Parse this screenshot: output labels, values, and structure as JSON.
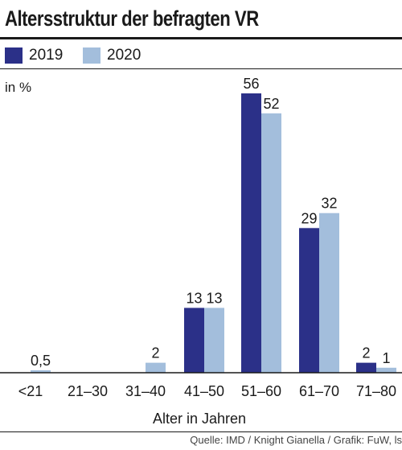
{
  "title": "Altersstruktur der befragten VR",
  "unit_label": "in %",
  "source": "Quelle: IMD / Knight Gianella / Grafik: FuW, ls",
  "colors": {
    "2019": "#2b3088",
    "2020": "#a3bedc",
    "axis": "#1a1a1a"
  },
  "chart_data": {
    "type": "bar",
    "title": "Altersstruktur der befragten VR",
    "xlabel": "Alter in Jahren",
    "ylabel": "in %",
    "categories": [
      "<21",
      "21–30",
      "31–40",
      "41–50",
      "51–60",
      "61–70",
      "71–80"
    ],
    "series": [
      {
        "name": "2019",
        "values": [
          null,
          null,
          null,
          13,
          56,
          29,
          2
        ],
        "labels": [
          "",
          "",
          "",
          "13",
          "56",
          "29",
          "2"
        ]
      },
      {
        "name": "2020",
        "values": [
          0.5,
          null,
          2,
          13,
          52,
          32,
          1
        ],
        "labels": [
          "0,5",
          "",
          "2",
          "13",
          "52",
          "32",
          "1"
        ]
      }
    ],
    "ylim": [
      0,
      56
    ],
    "grid": false,
    "legend": "top-left"
  }
}
